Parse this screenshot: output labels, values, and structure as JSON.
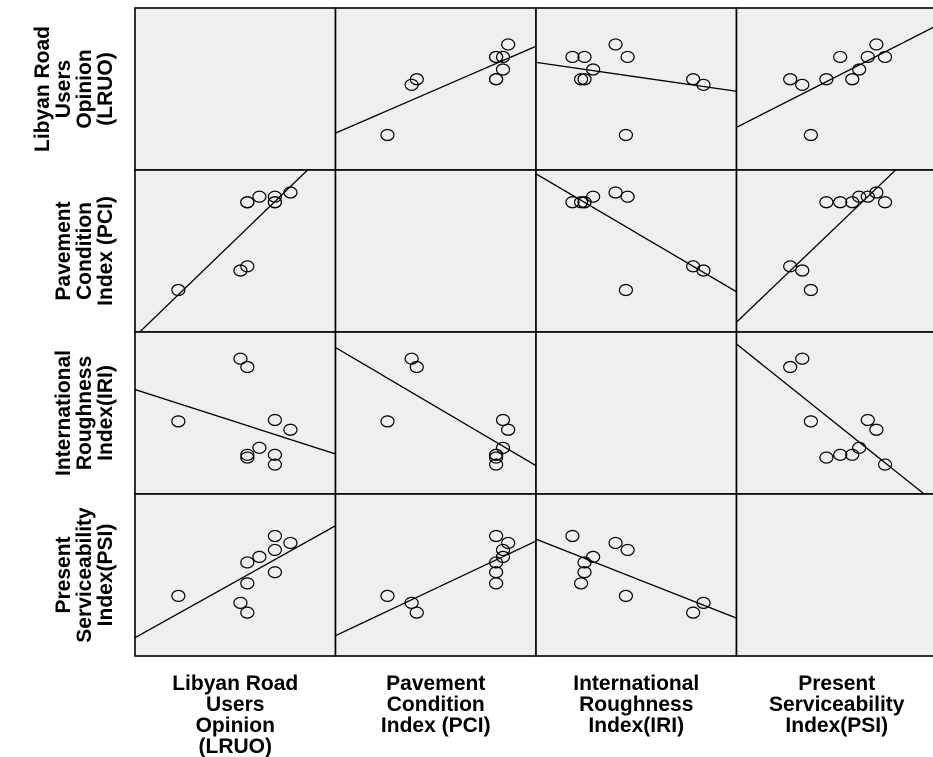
{
  "chart_data": {
    "type": "scatter",
    "subtype": "scatterplot-matrix",
    "fit_line": "linear",
    "marker": "hollow-circle",
    "diagonal": "empty",
    "grid": false,
    "panel_background": "#efefef",
    "line_color": "#000000",
    "variables": [
      {
        "key": "LRUO",
        "row_label_lines": [
          "Libyan Road",
          "Users",
          "Opinion",
          "(LRUO)"
        ],
        "col_label_lines": [
          "Libyan Road",
          "Users",
          "Opinion",
          "(LRUO)"
        ],
        "range": [
          0,
          10
        ]
      },
      {
        "key": "PCI",
        "row_label_lines": [
          "Pavement",
          "Condition",
          "Index (PCI)"
        ],
        "col_label_lines": [
          "Pavement",
          "Condition",
          "Index (PCI)"
        ],
        "range": [
          0,
          10
        ]
      },
      {
        "key": "IRI",
        "row_label_lines": [
          "International",
          "Roughness",
          "Index(IRI)"
        ],
        "col_label_lines": [
          "International",
          "Roughness",
          "Index(IRI)"
        ],
        "range": [
          0,
          10
        ]
      },
      {
        "key": "PSI",
        "row_label_lines": [
          "Present",
          "Serviceability",
          "Index(PSI)"
        ],
        "col_label_lines": [
          "Present",
          "Serviceability",
          "Index(PSI)"
        ],
        "range": [
          0,
          10
        ]
      }
    ],
    "observations": [
      {
        "LRUO": 1.7,
        "PCI": 2.2,
        "IRI": 4.4,
        "PSI": 3.5
      },
      {
        "LRUO": 5.3,
        "PCI": 3.6,
        "IRI": 8.9,
        "PSI": 3.0
      },
      {
        "LRUO": 5.7,
        "PCI": 3.9,
        "IRI": 8.3,
        "PSI": 2.3
      },
      {
        "LRUO": 5.7,
        "PCI": 8.5,
        "IRI": 1.8,
        "PSI": 4.4
      },
      {
        "LRUO": 5.7,
        "PCI": 8.5,
        "IRI": 2.0,
        "PSI": 5.9
      },
      {
        "LRUO": 6.4,
        "PCI": 8.9,
        "IRI": 2.5,
        "PSI": 6.3
      },
      {
        "LRUO": 7.3,
        "PCI": 8.5,
        "IRI": 2.0,
        "PSI": 5.2
      },
      {
        "LRUO": 7.3,
        "PCI": 8.5,
        "IRI": 1.3,
        "PSI": 7.8
      },
      {
        "LRUO": 7.3,
        "PCI": 8.9,
        "IRI": 4.5,
        "PSI": 6.8
      },
      {
        "LRUO": 8.2,
        "PCI": 9.2,
        "IRI": 3.8,
        "PSI": 7.3
      }
    ]
  }
}
